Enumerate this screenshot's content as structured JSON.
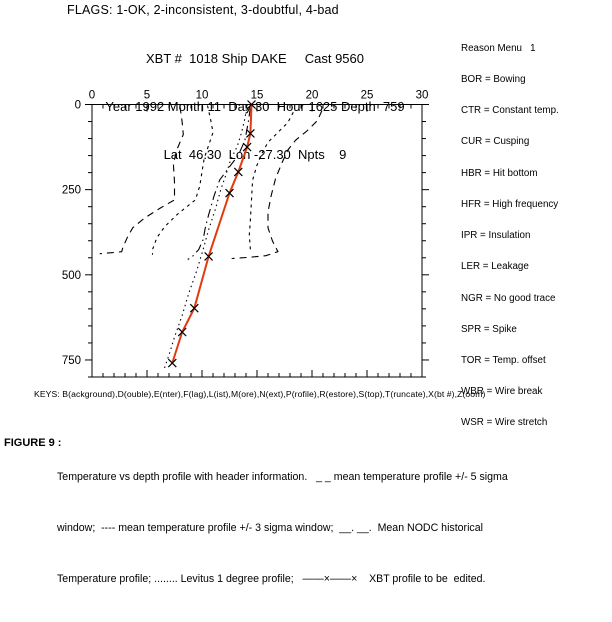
{
  "flags_line": "FLAGS: 1-OK, 2-inconsistent, 3-doubtful, 4-bad",
  "header": {
    "line1": "XBT #  1018 Ship DAKE     Cast 9560",
    "line2": "Year 1992 Month 11  Day 30  Hour 1625 Depth  759",
    "line3": "Lat  46.30  Lon -27.30  Npts    9"
  },
  "reason_menu": {
    "title": "Reason Menu   1",
    "items": [
      "BOR = Bowing",
      "CTR = Constant temp.",
      "CUR = Cusping",
      "HBR = Hit bottom",
      "HFR = High frequency",
      "IPR = Insulation",
      "LER = Leakage",
      "NGR = No good trace",
      "SPR = Spike",
      "TOR = Temp. offset",
      "WBR = Wire break",
      "WSR = Wire stretch"
    ]
  },
  "keys_line": "KEYS: B(ackground),D(ouble),E(nter),F(lag),L(ist),M(ore),N(ext),P(rofile),R(estore),S(top),T(runcate),X(bt #),Z(oom)",
  "caption": {
    "label": "FIGURE 9 :",
    "line1": "Temperature vs depth profile with header information.   _ _ mean temperature profile +/- 5 sigma",
    "line2": "window;  ---- mean temperature profile +/- 3 sigma window;  __. __.  Mean NODC historical",
    "line3": "Temperature profile; ........ Levitus 1 degree profile;   ——×——×    XBT profile to be  edited."
  },
  "colors": {
    "xbt_profile_line": "#e23a0e",
    "curves": "#000000",
    "background": "#ffffff",
    "text": "#000000"
  },
  "chart_data": {
    "type": "line",
    "title": "",
    "xlabel": "",
    "ylabel": "",
    "x_axis_position": "top",
    "y_inverted": true,
    "grid": false,
    "xlim": [
      0,
      30
    ],
    "ylim": [
      0,
      800
    ],
    "x_ticks_major": [
      0,
      5,
      10,
      15,
      20,
      25,
      30
    ],
    "x_tick_minor_step": 1,
    "y_ticks_major": [
      0,
      250,
      500,
      750
    ],
    "y_tick_minor_step": 50,
    "series": [
      {
        "name": "mean_minus_5_sigma_window",
        "legend": "mean temperature profile - 5 sigma",
        "style": "long-dash",
        "color": "#000000",
        "points": [
          [
            8.0,
            6
          ],
          [
            8.2,
            53
          ],
          [
            8.3,
            88
          ],
          [
            7.7,
            134
          ],
          [
            7.4,
            175
          ],
          [
            7.5,
            228
          ],
          [
            7.5,
            280
          ],
          [
            6.2,
            304
          ],
          [
            4.8,
            333
          ],
          [
            3.7,
            362
          ],
          [
            3.2,
            391
          ],
          [
            2.8,
            420
          ],
          [
            2.7,
            432
          ],
          [
            1.8,
            435
          ],
          [
            0.7,
            438
          ]
        ]
      },
      {
        "name": "mean_minus_3_sigma_window",
        "legend": "mean temperature profile - 3 sigma",
        "style": "short-dash",
        "color": "#000000",
        "points": [
          [
            10.5,
            3
          ],
          [
            10.8,
            47
          ],
          [
            11.0,
            82
          ],
          [
            10.6,
            120
          ],
          [
            10.2,
            158
          ],
          [
            10.0,
            198
          ],
          [
            9.8,
            239
          ],
          [
            9.4,
            280
          ],
          [
            8.7,
            298
          ],
          [
            7.7,
            324
          ],
          [
            6.6,
            359
          ],
          [
            5.9,
            391
          ],
          [
            5.5,
            426
          ],
          [
            5.5,
            441
          ]
        ]
      },
      {
        "name": "nodc_historical_profile",
        "legend": "Mean NODC historical Temperature profile",
        "style": "dash-dot",
        "color": "#000000",
        "points": [
          [
            14.4,
            9
          ],
          [
            14.2,
            53
          ],
          [
            13.9,
            105
          ],
          [
            13.3,
            149
          ],
          [
            12.4,
            187
          ],
          [
            11.6,
            222
          ],
          [
            11.1,
            268
          ],
          [
            10.6,
            324
          ],
          [
            10.3,
            362
          ],
          [
            10.1,
            397
          ],
          [
            9.7,
            426
          ],
          [
            9.1,
            447
          ],
          [
            8.7,
            455
          ]
        ]
      },
      {
        "name": "levitus_1_degree_profile",
        "legend": "Levitus 1 degree profile",
        "style": "dotted",
        "color": "#000000",
        "points": [
          [
            14.1,
            0
          ],
          [
            13.9,
            41
          ],
          [
            13.6,
            82
          ],
          [
            13.2,
            123
          ],
          [
            12.6,
            163
          ],
          [
            12.2,
            204
          ],
          [
            11.7,
            251
          ],
          [
            11.2,
            309
          ],
          [
            10.6,
            368
          ],
          [
            10.1,
            426
          ],
          [
            9.5,
            490
          ],
          [
            8.8,
            554
          ],
          [
            8.2,
            619
          ],
          [
            7.5,
            683
          ],
          [
            7.0,
            735
          ],
          [
            6.5,
            782
          ]
        ]
      },
      {
        "name": "mean_plus_3_sigma_window",
        "legend": "mean temperature profile + 3 sigma",
        "style": "short-dash",
        "color": "#000000",
        "points": [
          [
            18.3,
            23
          ],
          [
            17.8,
            53
          ],
          [
            16.9,
            82
          ],
          [
            16.0,
            111
          ],
          [
            15.5,
            140
          ],
          [
            15.0,
            178
          ],
          [
            14.6,
            222
          ],
          [
            14.5,
            280
          ],
          [
            14.4,
            339
          ],
          [
            14.3,
            382
          ],
          [
            14.4,
            426
          ]
        ]
      },
      {
        "name": "mean_plus_5_sigma_window",
        "legend": "mean temperature profile + 5 sigma",
        "style": "long-dash",
        "color": "#000000",
        "points": [
          [
            20.9,
            18
          ],
          [
            20.5,
            47
          ],
          [
            19.6,
            76
          ],
          [
            18.5,
            105
          ],
          [
            17.8,
            134
          ],
          [
            17.3,
            169
          ],
          [
            16.7,
            216
          ],
          [
            16.3,
            266
          ],
          [
            16.0,
            315
          ],
          [
            16.0,
            362
          ],
          [
            16.4,
            400
          ],
          [
            16.9,
            432
          ],
          [
            15.8,
            444
          ],
          [
            14.2,
            449
          ],
          [
            12.7,
            452
          ]
        ]
      },
      {
        "name": "xbt_profile",
        "legend": "XBT profile to be edited",
        "style": "solid",
        "color": "#e23a0e",
        "marker": "x",
        "marker_color": "#000000",
        "points": [
          [
            14.5,
            0
          ],
          [
            14.4,
            85
          ],
          [
            14.1,
            125
          ],
          [
            13.3,
            198
          ],
          [
            12.5,
            260
          ],
          [
            10.6,
            446
          ],
          [
            9.3,
            598
          ],
          [
            8.2,
            668
          ],
          [
            7.3,
            759
          ]
        ]
      }
    ]
  }
}
